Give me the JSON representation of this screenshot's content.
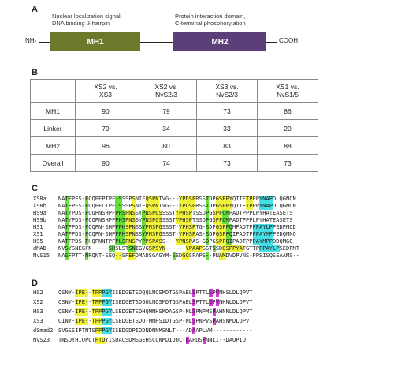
{
  "panel_a": {
    "label": "A",
    "nh2": "NH₂",
    "cooh": "COOH",
    "mh1_label": "MH1",
    "mh2_label": "MH2",
    "mh1_annotation": [
      "Nuclear localization signal,",
      "DNA binding β-hairpin"
    ],
    "mh2_annotation": [
      "Protein interaction domain,",
      "C-terminal phosphorylation"
    ],
    "colors": {
      "mh1": "#6b7a2a",
      "mh2": "#5a3f78"
    }
  },
  "panel_b": {
    "label": "B",
    "headers": [
      [
        "XS2 vs.",
        "XS3"
      ],
      [
        "XS2 vs.",
        "NvS2/3"
      ],
      [
        "XS3 vs.",
        "NvS2/3"
      ],
      [
        "XS1 vs.",
        "NvS1/5"
      ]
    ],
    "rows": [
      {
        "name": "MH1",
        "values": [
          "90",
          "79",
          "73",
          "86"
        ]
      },
      {
        "name": "Linker",
        "values": [
          "79",
          "34",
          "33",
          "20"
        ]
      },
      {
        "name": "MH2",
        "values": [
          "96",
          "80",
          "83",
          "88"
        ]
      },
      {
        "name": "Overall",
        "values": [
          "90",
          "74",
          "73",
          "73"
        ]
      }
    ]
  },
  "panel_c": {
    "label": "C",
    "names": [
      "XS8a",
      "XS8b",
      "HS9a",
      "HS9b",
      "HS1",
      "XS1",
      "HS5",
      "dMAD",
      "NvS15"
    ],
    "seqs": [
      "NATFPES-FQQPEPTPF-SSSPSNIFQSPNTVG---YPDSPRSSTDPGSPPYQITETPPPYNAPDLQGNQN",
      "NATFPES-FQQPECTPF-SSSPSNIFQSPNTVG---YPDSPRSSTDPGSPPYQITETPPPYNAPDLQGNQN",
      "NATYPDS-FQQPNSHPFPHSPNSSYPNSPGSSSSTYPHSPTSSDPGSPFQMPADTPPPLPYHATEASETS",
      "NATYPDS-FQQPNSHPFPHSPNSSYPNSPGSSSSTYPHSPTSSDPGSPFQMPADTPPPLPYHATEASETS",
      "NATFPDS-FQQPN-SHPFPHSPNSSYPNSPGSSST-YPHSPTG-SDPGSPFQMPADTPPPAYLPPEDPMQD",
      "NATFPDS-FQQPN-SHPFPHSPNSSYPNSPGSSST-YPHSPAS-SDPGSPFQIPADTPPPAYMPPEDQMNQ",
      "NATFPDS-FHQPNNTPFPLSPNSPYPPSPASS---YPNSPAS-SDPGSPFQIPADTPPPAYMPPDDQMGQ",
      "NVSYSNEGFN-----SHSLSTSNIGVGSPSYN------YPAAPSSTSSDGSPPYATGTTPPPAYLPSEDPMT",
      "NASFPTT-NRQNT-SEQ--SPEFDMADSGAGYM-SEDGGSPAPE--PNAMDVDPVNS-PPSISQSEAAMS--"
    ],
    "highlights": [
      [
        [
          "g",
          2,
          2
        ],
        [
          "g",
          8,
          8
        ],
        [
          "g",
          17,
          18
        ],
        [
          "y",
          22,
          22
        ],
        [
          "y",
          26,
          29
        ],
        [
          "y",
          36,
          40
        ],
        [
          "g",
          44,
          44
        ],
        [
          "y",
          47,
          51
        ],
        [
          "y",
          56,
          57
        ],
        [
          "c",
          60,
          63
        ]
      ],
      [
        [
          "g",
          2,
          2
        ],
        [
          "g",
          8,
          8
        ],
        [
          "g",
          17,
          18
        ],
        [
          "y",
          22,
          22
        ],
        [
          "y",
          26,
          29
        ],
        [
          "y",
          36,
          40
        ],
        [
          "g",
          44,
          44
        ],
        [
          "y",
          47,
          51
        ],
        [
          "y",
          56,
          57
        ],
        [
          "c",
          60,
          63
        ]
      ],
      [
        [
          "g",
          2,
          2
        ],
        [
          "g",
          8,
          8
        ],
        [
          "g",
          17,
          19
        ],
        [
          "y",
          20,
          22
        ],
        [
          "g",
          25,
          25
        ],
        [
          "y",
          26,
          30
        ],
        [
          "y",
          35,
          39
        ],
        [
          "g",
          44,
          44
        ],
        [
          "y",
          46,
          48
        ],
        [
          "g",
          49,
          50
        ]
      ],
      [
        [
          "g",
          2,
          2
        ],
        [
          "g",
          8,
          8
        ],
        [
          "g",
          17,
          19
        ],
        [
          "y",
          20,
          22
        ],
        [
          "g",
          25,
          25
        ],
        [
          "y",
          26,
          30
        ],
        [
          "y",
          35,
          39
        ],
        [
          "g",
          44,
          44
        ],
        [
          "y",
          46,
          48
        ],
        [
          "g",
          49,
          50
        ]
      ],
      [
        [
          "g",
          2,
          2
        ],
        [
          "g",
          8,
          8
        ],
        [
          "g",
          17,
          19
        ],
        [
          "y",
          20,
          22
        ],
        [
          "g",
          25,
          25
        ],
        [
          "y",
          26,
          30
        ],
        [
          "y",
          36,
          40
        ],
        [
          "g",
          44,
          44
        ],
        [
          "y",
          47,
          49
        ],
        [
          "g",
          50,
          51
        ],
        [
          "c",
          58,
          63
        ]
      ],
      [
        [
          "g",
          2,
          2
        ],
        [
          "g",
          8,
          8
        ],
        [
          "g",
          17,
          19
        ],
        [
          "y",
          20,
          22
        ],
        [
          "g",
          25,
          25
        ],
        [
          "y",
          26,
          30
        ],
        [
          "y",
          36,
          40
        ],
        [
          "g",
          44,
          44
        ],
        [
          "y",
          47,
          49
        ],
        [
          "g",
          50,
          51
        ],
        [
          "c",
          58,
          63
        ]
      ],
      [
        [
          "g",
          2,
          2
        ],
        [
          "g",
          8,
          8
        ],
        [
          "g",
          17,
          19
        ],
        [
          "y",
          20,
          22
        ],
        [
          "g",
          25,
          25
        ],
        [
          "y",
          26,
          30
        ],
        [
          "y",
          35,
          39
        ],
        [
          "g",
          44,
          44
        ],
        [
          "y",
          47,
          49
        ],
        [
          "g",
          50,
          51
        ],
        [
          "c",
          58,
          63
        ]
      ],
      [
        [
          "g",
          2,
          2
        ],
        [
          "g",
          15,
          16
        ],
        [
          "g",
          21,
          22
        ],
        [
          "y",
          27,
          31
        ],
        [
          "y",
          38,
          42
        ],
        [
          "g",
          46,
          46
        ],
        [
          "y",
          49,
          54
        ],
        [
          "c",
          60,
          65
        ]
      ],
      [
        [
          "g",
          2,
          2
        ],
        [
          "g",
          8,
          8
        ],
        [
          "y",
          17,
          18
        ],
        [
          "y",
          21,
          22
        ],
        [
          "g",
          34,
          34
        ],
        [
          "y",
          37,
          38
        ],
        [
          "g",
          44,
          44
        ],
        [
          "y",
          48,
          49
        ]
      ]
    ]
  },
  "panel_d": {
    "label": "D",
    "names": [
      "HS2",
      "XS2",
      "HS3",
      "XS3",
      "dSmad2",
      "NvS23"
    ],
    "seqs": [
      "QSNY-IPE--TPPPGYISEDGETSDQQLNQSMDTGSPAELSPTTLSPVNHSLDLQPVT",
      "QSNY-IPE--TPPPGYISEDGETSDQQLNQSMDTGSPAELSPTTLSPVNHNLDLQPVT",
      "QSNY-IPE--TPPPGYLSEDGETSDHQMNHSMDAGSP-NLSPNPMSPAHNNLDLQPVT",
      "QINY-IPE--TPPPGYLSEDGETSDQ-MNHSIDTGSP-NLSPNPVSPAHSNMDLQPVT",
      "SVGSSIPTNTSPPPGYISEDGDPIDDNDNNMSNLT---ADAAPLVM------------",
      "TNSOYHIOPGTPTDYISDACSDMSGEHSCONMDIDQL-EAPDSPNNLI--DAOPIQ"
    ],
    "highlights": [
      [
        [
          "y",
          5,
          8
        ],
        [
          "y",
          10,
          12
        ],
        [
          "c",
          13,
          15
        ],
        [
          "m",
          40,
          40
        ],
        [
          "m",
          45,
          45
        ],
        [
          "m",
          47,
          47
        ]
      ],
      [
        [
          "y",
          5,
          8
        ],
        [
          "y",
          10,
          12
        ],
        [
          "c",
          13,
          15
        ],
        [
          "m",
          40,
          40
        ],
        [
          "m",
          45,
          45
        ],
        [
          "m",
          47,
          47
        ]
      ],
      [
        [
          "y",
          5,
          8
        ],
        [
          "y",
          10,
          12
        ],
        [
          "c",
          13,
          15
        ],
        [
          "m",
          40,
          40
        ],
        [
          "m",
          46,
          46
        ]
      ],
      [
        [
          "y",
          5,
          8
        ],
        [
          "y",
          10,
          12
        ],
        [
          "c",
          13,
          15
        ],
        [
          "m",
          40,
          40
        ],
        [
          "m",
          46,
          46
        ]
      ],
      [
        [
          "y",
          11,
          12
        ],
        [
          "c",
          13,
          15
        ],
        [
          "m",
          40,
          40
        ]
      ],
      [
        [
          "y",
          11,
          13
        ],
        [
          "m",
          38,
          38
        ],
        [
          "m",
          43,
          43
        ]
      ]
    ]
  }
}
